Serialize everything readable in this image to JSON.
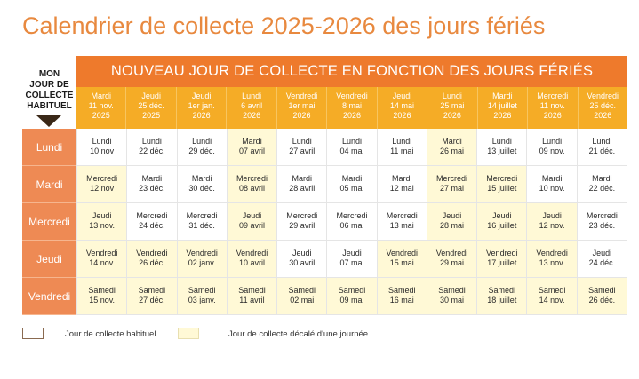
{
  "title": "Calendrier de collecte 2025-2026 des jours fériés",
  "corner": {
    "line1": "MON",
    "line2": "JOUR DE",
    "line3": "COLLECTE",
    "line4": "HABITUEL"
  },
  "banner": "NOUVEAU JOUR DE COLLECTE EN FONCTION DES JOURS FÉRIÉS",
  "holidays": [
    {
      "day": "Mardi",
      "date": "11 nov.",
      "year": "2025"
    },
    {
      "day": "Jeudi",
      "date": "25 déc.",
      "year": "2025"
    },
    {
      "day": "Jeudi",
      "date": "1er jan.",
      "year": "2026"
    },
    {
      "day": "Lundi",
      "date": "6 avril",
      "year": "2026"
    },
    {
      "day": "Vendredi",
      "date": "1er mai",
      "year": "2026"
    },
    {
      "day": "Vendredi",
      "date": "8 mai",
      "year": "2026"
    },
    {
      "day": "Jeudi",
      "date": "14 mai",
      "year": "2026"
    },
    {
      "day": "Lundi",
      "date": "25 mai",
      "year": "2026"
    },
    {
      "day": "Mardi",
      "date": "14 juillet",
      "year": "2026"
    },
    {
      "day": "Mercredi",
      "date": "11 nov.",
      "year": "2026"
    },
    {
      "day": "Vendredi",
      "date": "25 déc.",
      "year": "2026"
    }
  ],
  "rows": [
    {
      "label": "Lundi",
      "cells": [
        {
          "day": "Lundi",
          "date": "10 nov",
          "shifted": false
        },
        {
          "day": "Lundi",
          "date": "22 déc.",
          "shifted": false
        },
        {
          "day": "Lundi",
          "date": "29 déc.",
          "shifted": false
        },
        {
          "day": "Mardi",
          "date": "07 avril",
          "shifted": true
        },
        {
          "day": "Lundi",
          "date": "27 avril",
          "shifted": false
        },
        {
          "day": "Lundi",
          "date": "04 mai",
          "shifted": false
        },
        {
          "day": "Lundi",
          "date": "11 mai",
          "shifted": false
        },
        {
          "day": "Mardi",
          "date": "26 mai",
          "shifted": true
        },
        {
          "day": "Lundi",
          "date": "13 juillet",
          "shifted": false
        },
        {
          "day": "Lundi",
          "date": "09 nov.",
          "shifted": false
        },
        {
          "day": "Lundi",
          "date": "21 déc.",
          "shifted": false
        }
      ]
    },
    {
      "label": "Mardi",
      "cells": [
        {
          "day": "Mercredi",
          "date": "12 nov",
          "shifted": true
        },
        {
          "day": "Mardi",
          "date": "23 déc.",
          "shifted": false
        },
        {
          "day": "Mardi",
          "date": "30 déc.",
          "shifted": false
        },
        {
          "day": "Mercredi",
          "date": "08 avril",
          "shifted": true
        },
        {
          "day": "Mardi",
          "date": "28 avril",
          "shifted": false
        },
        {
          "day": "Mardi",
          "date": "05 mai",
          "shifted": false
        },
        {
          "day": "Mardi",
          "date": "12 mai",
          "shifted": false
        },
        {
          "day": "Mercredi",
          "date": "27 mai",
          "shifted": true
        },
        {
          "day": "Mercredi",
          "date": "15 juillet",
          "shifted": true
        },
        {
          "day": "Mardi",
          "date": "10 nov.",
          "shifted": false
        },
        {
          "day": "Mardi",
          "date": "22 déc.",
          "shifted": false
        }
      ]
    },
    {
      "label": "Mercredi",
      "cells": [
        {
          "day": "Jeudi",
          "date": "13 nov.",
          "shifted": true
        },
        {
          "day": "Mercredi",
          "date": "24 déc.",
          "shifted": false
        },
        {
          "day": "Mercredi",
          "date": "31 déc.",
          "shifted": false
        },
        {
          "day": "Jeudi",
          "date": "09 avril",
          "shifted": true
        },
        {
          "day": "Mercredi",
          "date": "29 avril",
          "shifted": false
        },
        {
          "day": "Mercredi",
          "date": "06 mai",
          "shifted": false
        },
        {
          "day": "Mercredi",
          "date": "13 mai",
          "shifted": false
        },
        {
          "day": "Jeudi",
          "date": "28 mai",
          "shifted": true
        },
        {
          "day": "Jeudi",
          "date": "16 juillet",
          "shifted": true
        },
        {
          "day": "Jeudi",
          "date": "12 nov.",
          "shifted": true
        },
        {
          "day": "Mercredi",
          "date": "23 déc.",
          "shifted": false
        }
      ]
    },
    {
      "label": "Jeudi",
      "cells": [
        {
          "day": "Vendredi",
          "date": "14 nov.",
          "shifted": true
        },
        {
          "day": "Vendredi",
          "date": "26 déc.",
          "shifted": true
        },
        {
          "day": "Vendredi",
          "date": "02 janv.",
          "shifted": true
        },
        {
          "day": "Vendredi",
          "date": "10 avril",
          "shifted": true
        },
        {
          "day": "Jeudi",
          "date": "30 avril",
          "shifted": false
        },
        {
          "day": "Jeudi",
          "date": "07 mai",
          "shifted": false
        },
        {
          "day": "Vendredi",
          "date": "15 mai",
          "shifted": true
        },
        {
          "day": "Vendredi",
          "date": "29 mai",
          "shifted": true
        },
        {
          "day": "Vendredi",
          "date": "17 juillet",
          "shifted": true
        },
        {
          "day": "Vendredi",
          "date": "13 nov.",
          "shifted": true
        },
        {
          "day": "Jeudi",
          "date": "24 déc.",
          "shifted": false
        }
      ]
    },
    {
      "label": "Vendredi",
      "cells": [
        {
          "day": "Samedi",
          "date": "15 nov.",
          "shifted": true
        },
        {
          "day": "Samedi",
          "date": "27 déc.",
          "shifted": true
        },
        {
          "day": "Samedi",
          "date": "03 janv.",
          "shifted": true
        },
        {
          "day": "Samedi",
          "date": "11 avril",
          "shifted": true
        },
        {
          "day": "Samedi",
          "date": "02 mai",
          "shifted": true
        },
        {
          "day": "Samedi",
          "date": "09 mai",
          "shifted": true
        },
        {
          "day": "Samedi",
          "date": "16 mai",
          "shifted": true
        },
        {
          "day": "Samedi",
          "date": "30 mai",
          "shifted": true
        },
        {
          "day": "Samedi",
          "date": "18 juillet",
          "shifted": true
        },
        {
          "day": "Samedi",
          "date": "14 nov.",
          "shifted": true
        },
        {
          "day": "Samedi",
          "date": "26 déc.",
          "shifted": true
        }
      ]
    }
  ],
  "legend": {
    "usual": "Jour de collecte habituel",
    "shifted": "Jour de collecte décalé d'une journée"
  },
  "colors": {
    "title": "#e8893f",
    "banner": "#ee7a2c",
    "header_dates": "#f5ac26",
    "row_labels": "#ee8a54",
    "shifted_cell": "#fff9d6"
  }
}
